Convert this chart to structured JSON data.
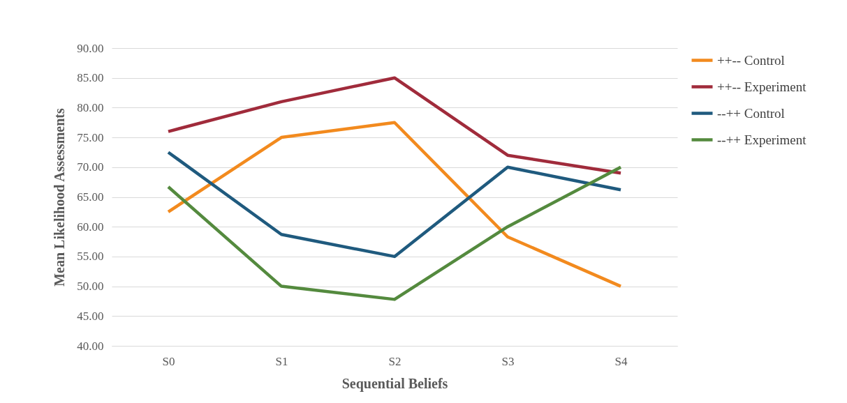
{
  "chart_data": {
    "type": "line",
    "xlabel": "Sequential Beliefs",
    "ylabel": "Mean Likelihood Assessments",
    "categories": [
      "S0",
      "S1",
      "S2",
      "S3",
      "S4"
    ],
    "series": [
      {
        "name": "++-- Control",
        "color": "#f28a1e",
        "values": [
          62.5,
          75,
          77.5,
          58.3,
          50
        ]
      },
      {
        "name": "++-- Experiment",
        "color": "#a02b3b",
        "values": [
          76,
          81,
          85,
          72,
          69
        ]
      },
      {
        "name": "--++ Control",
        "color": "#1f5a7e",
        "values": [
          72.5,
          58.7,
          55,
          70,
          66.2
        ]
      },
      {
        "name": "--++ Experiment",
        "color": "#548a3e",
        "values": [
          66.7,
          50,
          47.8,
          60,
          70
        ]
      }
    ],
    "ylim": [
      40,
      90
    ],
    "yticks": [
      {
        "value": 40,
        "label": "40.00"
      },
      {
        "value": 45,
        "label": "45.00"
      },
      {
        "value": 50,
        "label": "50.00"
      },
      {
        "value": 55,
        "label": "55.00"
      },
      {
        "value": 60,
        "label": "60.00"
      },
      {
        "value": 65,
        "label": "65.00"
      },
      {
        "value": 70,
        "label": "70.00"
      },
      {
        "value": 75,
        "label": "75.00"
      },
      {
        "value": 80,
        "label": "80.00"
      },
      {
        "value": 85,
        "label": "85.00"
      },
      {
        "value": 90,
        "label": "90.00"
      }
    ],
    "grid": "y",
    "legend": "right",
    "marker": "none",
    "line_style": "solid"
  }
}
